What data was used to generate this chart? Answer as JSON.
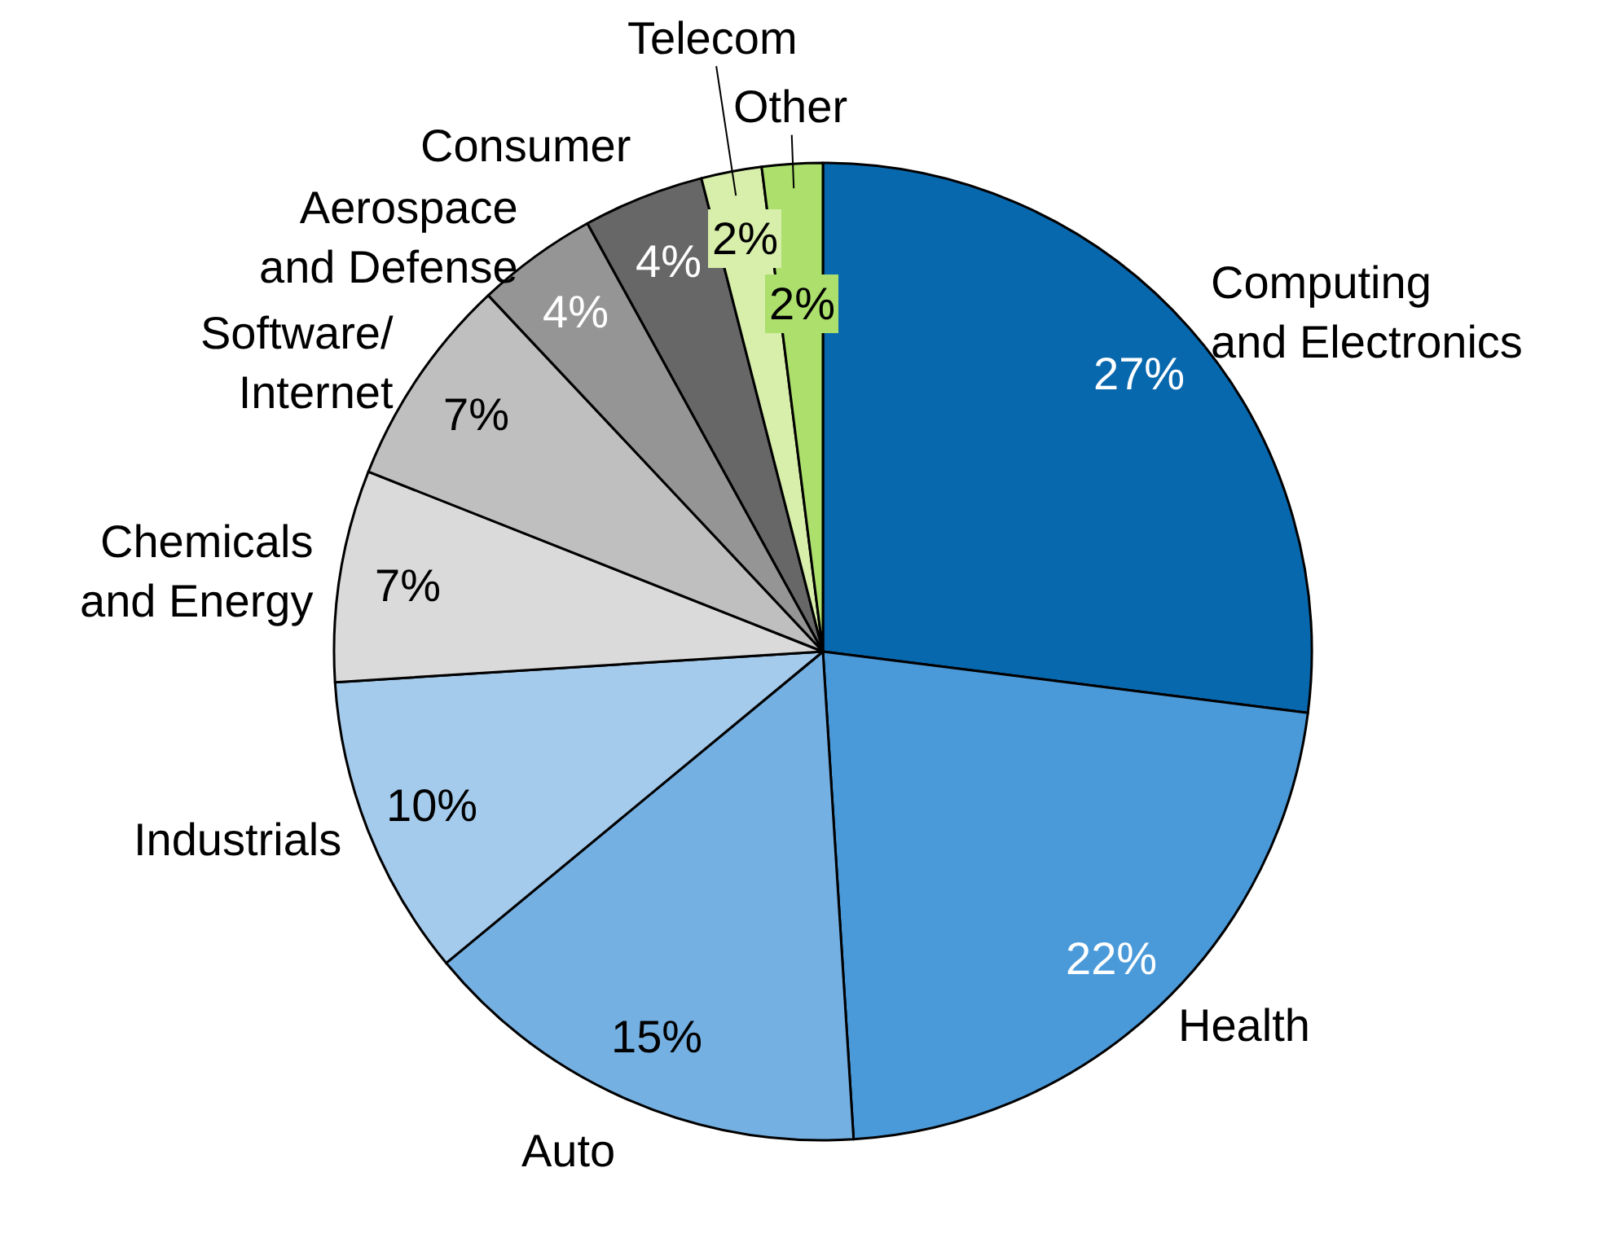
{
  "chart_data": {
    "type": "pie",
    "categories": [
      "Computing\nand Electronics",
      "Health",
      "Auto",
      "Industrials",
      "Chemicals\nand Energy",
      "Software/\nInternet",
      "Aerospace\nand Defense",
      "Consumer",
      "Telecom",
      "Other"
    ],
    "values": [
      27,
      22,
      15,
      10,
      7,
      7,
      4,
      4,
      2,
      2
    ],
    "value_labels": [
      "27%",
      "22%",
      "15%",
      "10%",
      "7%",
      "7%",
      "4%",
      "4%",
      "2%",
      "2%"
    ],
    "colors": [
      "#0868ae",
      "#4a9ada",
      "#75b0e2",
      "#a5cbec",
      "#dadada",
      "#bfbfbf",
      "#959595",
      "#676767",
      "#d8eeab",
      "#acdf6c"
    ],
    "legend": false
  }
}
